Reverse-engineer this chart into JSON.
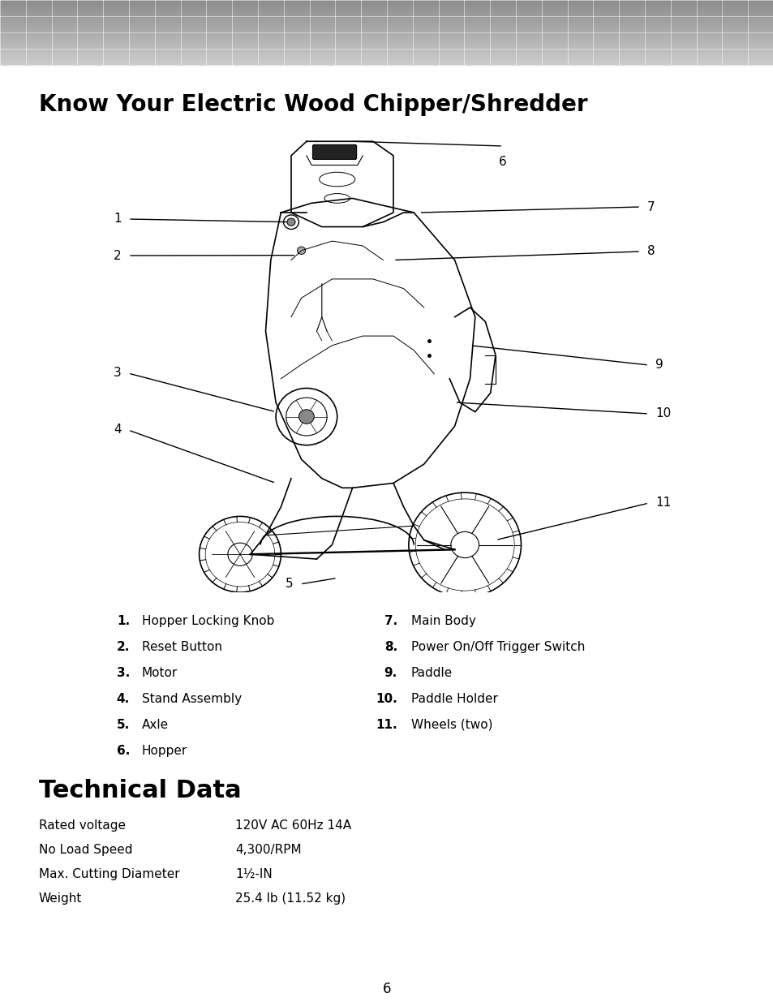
{
  "page_title": "Know Your Electric Wood Chipper/Shredder",
  "section2_title": "Technical Data",
  "bg_color": "#ffffff",
  "parts_left": [
    {
      "num": "1.",
      "text": "  Hopper Locking Knob"
    },
    {
      "num": "2.",
      "text": "  Reset Button"
    },
    {
      "num": "3.",
      "text": "  Motor"
    },
    {
      "num": "4.",
      "text": "  Stand Assembly"
    },
    {
      "num": "5.",
      "text": "  Axle"
    },
    {
      "num": "6.",
      "text": "  Hopper"
    }
  ],
  "parts_right": [
    {
      "num": "7.",
      "text": "  Main Body"
    },
    {
      "num": "8.",
      "text": "  Power On/Off Trigger Switch"
    },
    {
      "num": "9.",
      "text": "  Paddle"
    },
    {
      "num": "10.",
      "text": "  Paddle Holder"
    },
    {
      "num": "11.",
      "text": "  Wheels (two)"
    }
  ],
  "tech_data": [
    {
      "label": "Rated voltage",
      "value": "120V AC 60Hz 14A"
    },
    {
      "label": "No Load Speed",
      "value": "4,300/RPM"
    },
    {
      "label": "Max. Cutting Diameter",
      "value": "1½-IN"
    },
    {
      "label": "Weight",
      "value": "25.4 lb (11.52 kg)"
    }
  ],
  "page_number": "6",
  "header_rows": 4,
  "header_cols": 30
}
